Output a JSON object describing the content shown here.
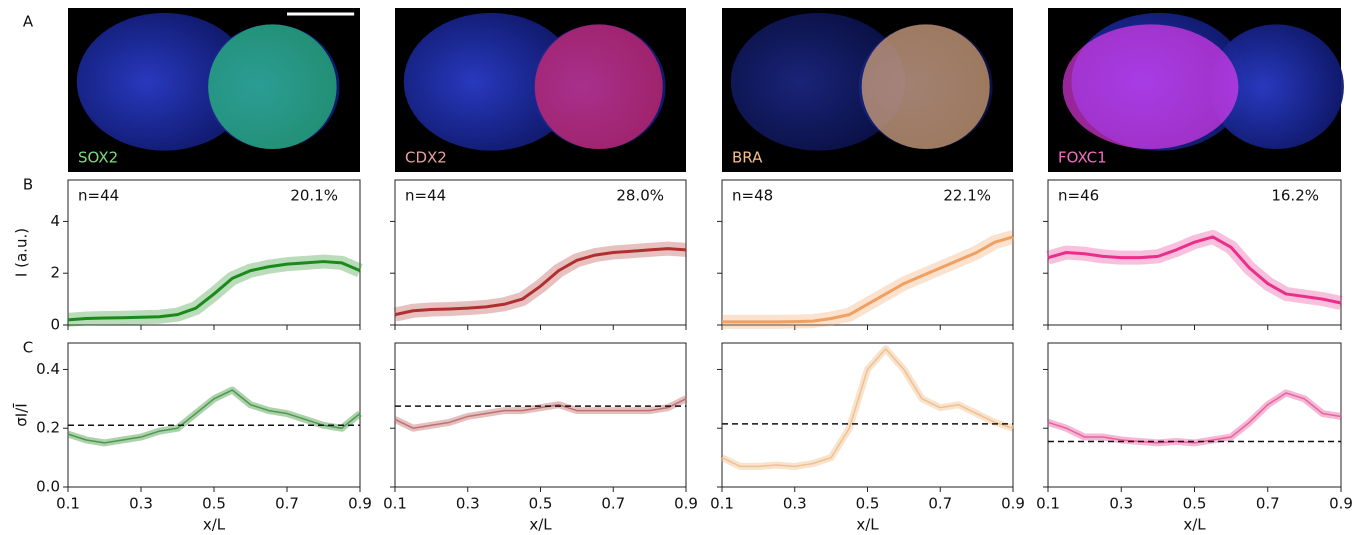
{
  "panel_labels": [
    "A",
    "B",
    "C"
  ],
  "images": [
    {
      "label": "SOX2",
      "label_color": "#7ddc7d"
    },
    {
      "label": "CDX2",
      "label_color": "#e8a0a0"
    },
    {
      "label": "BRA",
      "label_color": "#f5c08a"
    },
    {
      "label": "FOXC1",
      "label_color": "#f070c0"
    }
  ],
  "chart_data": [
    {
      "type": "line",
      "ylabel": "I (a.u.)",
      "annotations": [
        "n=44",
        "20.1%"
      ],
      "color": "#1a8a1a",
      "x": [
        0.1,
        0.15,
        0.2,
        0.25,
        0.3,
        0.35,
        0.4,
        0.45,
        0.5,
        0.55,
        0.6,
        0.65,
        0.7,
        0.75,
        0.8,
        0.85,
        0.9
      ],
      "values": [
        0.2,
        0.25,
        0.27,
        0.28,
        0.3,
        0.32,
        0.4,
        0.65,
        1.2,
        1.8,
        2.1,
        2.25,
        2.35,
        2.4,
        2.45,
        2.4,
        2.1
      ],
      "xlim": [
        0.1,
        0.9
      ],
      "xticks": [
        0.1,
        0.3,
        0.5,
        0.7,
        0.9
      ],
      "xtick_labels": false,
      "ylim": [
        0,
        5.6
      ],
      "yticks": [
        0,
        2,
        4
      ],
      "ytick_labels": true
    },
    {
      "type": "line",
      "annotations": [
        "n=44",
        "28.0%"
      ],
      "color": "#b03030",
      "x": [
        0.1,
        0.15,
        0.2,
        0.25,
        0.3,
        0.35,
        0.4,
        0.45,
        0.5,
        0.55,
        0.6,
        0.65,
        0.7,
        0.75,
        0.8,
        0.85,
        0.9
      ],
      "values": [
        0.4,
        0.55,
        0.6,
        0.62,
        0.65,
        0.7,
        0.8,
        1.0,
        1.5,
        2.1,
        2.5,
        2.7,
        2.8,
        2.85,
        2.9,
        2.95,
        2.9
      ],
      "xlim": [
        0.1,
        0.9
      ],
      "xticks": [
        0.1,
        0.3,
        0.5,
        0.7,
        0.9
      ],
      "xtick_labels": false,
      "ylim": [
        0,
        5.6
      ],
      "yticks": [
        0,
        2,
        4
      ],
      "ytick_labels": false
    },
    {
      "type": "line",
      "annotations": [
        "n=48",
        "22.1%"
      ],
      "color": "#f0a060",
      "x": [
        0.1,
        0.15,
        0.2,
        0.25,
        0.3,
        0.35,
        0.4,
        0.45,
        0.5,
        0.55,
        0.6,
        0.65,
        0.7,
        0.75,
        0.8,
        0.85,
        0.9
      ],
      "values": [
        0.12,
        0.12,
        0.12,
        0.12,
        0.13,
        0.15,
        0.25,
        0.4,
        0.8,
        1.2,
        1.6,
        1.9,
        2.2,
        2.5,
        2.8,
        3.2,
        3.4
      ],
      "xlim": [
        0.1,
        0.9
      ],
      "xticks": [
        0.1,
        0.3,
        0.5,
        0.7,
        0.9
      ],
      "xtick_labels": false,
      "ylim": [
        0,
        5.6
      ],
      "yticks": [
        0,
        2,
        4
      ],
      "ytick_labels": false
    },
    {
      "type": "line",
      "annotations": [
        "n=46",
        "16.2%"
      ],
      "color": "#e8308a",
      "x": [
        0.1,
        0.15,
        0.2,
        0.25,
        0.3,
        0.35,
        0.4,
        0.45,
        0.5,
        0.55,
        0.6,
        0.65,
        0.7,
        0.75,
        0.8,
        0.85,
        0.9
      ],
      "values": [
        2.6,
        2.8,
        2.75,
        2.65,
        2.6,
        2.6,
        2.65,
        2.9,
        3.2,
        3.4,
        3.0,
        2.2,
        1.6,
        1.2,
        1.1,
        1.0,
        0.85
      ],
      "xlim": [
        0.1,
        0.9
      ],
      "xticks": [
        0.1,
        0.3,
        0.5,
        0.7,
        0.9
      ],
      "xtick_labels": false,
      "ylim": [
        0,
        5.6
      ],
      "yticks": [
        0,
        2,
        4
      ],
      "ytick_labels": false
    },
    {
      "type": "line",
      "ylabel": "σI/Ī",
      "xlabel": "x/L",
      "color": "#4a9a4a",
      "reference_line": 0.21,
      "x": [
        0.1,
        0.15,
        0.2,
        0.25,
        0.3,
        0.35,
        0.4,
        0.45,
        0.5,
        0.55,
        0.6,
        0.65,
        0.7,
        0.75,
        0.8,
        0.85,
        0.9
      ],
      "values": [
        0.18,
        0.16,
        0.15,
        0.16,
        0.17,
        0.19,
        0.2,
        0.25,
        0.3,
        0.33,
        0.28,
        0.26,
        0.25,
        0.23,
        0.21,
        0.2,
        0.25
      ],
      "xlim": [
        0.1,
        0.9
      ],
      "xticks": [
        0.1,
        0.3,
        0.5,
        0.7,
        0.9
      ],
      "xtick_labels": true,
      "ylim": [
        0,
        0.49
      ],
      "yticks": [
        {
          "value": 0,
          "label": "0.0"
        },
        0.2,
        0.4
      ],
      "ytick_labels": true
    },
    {
      "type": "line",
      "xlabel": "x/L",
      "color": "#c07070",
      "reference_line": 0.275,
      "x": [
        0.1,
        0.15,
        0.2,
        0.25,
        0.3,
        0.35,
        0.4,
        0.45,
        0.5,
        0.55,
        0.6,
        0.65,
        0.7,
        0.75,
        0.8,
        0.85,
        0.9
      ],
      "values": [
        0.23,
        0.2,
        0.21,
        0.22,
        0.24,
        0.25,
        0.26,
        0.26,
        0.27,
        0.28,
        0.26,
        0.26,
        0.26,
        0.26,
        0.26,
        0.27,
        0.3
      ],
      "xlim": [
        0.1,
        0.9
      ],
      "xticks": [
        0.1,
        0.3,
        0.5,
        0.7,
        0.9
      ],
      "xtick_labels": true,
      "ylim": [
        0,
        0.49
      ],
      "yticks": [
        {
          "value": 0,
          "label": "0.0"
        },
        0.2,
        0.4
      ],
      "ytick_labels": false
    },
    {
      "type": "line",
      "xlabel": "x/L",
      "color": "#f0c090",
      "reference_line": 0.215,
      "x": [
        0.1,
        0.15,
        0.2,
        0.25,
        0.3,
        0.35,
        0.4,
        0.45,
        0.5,
        0.55,
        0.6,
        0.65,
        0.7,
        0.75,
        0.8,
        0.85,
        0.9
      ],
      "values": [
        0.1,
        0.07,
        0.07,
        0.075,
        0.07,
        0.08,
        0.1,
        0.2,
        0.4,
        0.47,
        0.4,
        0.3,
        0.27,
        0.28,
        0.25,
        0.22,
        0.2
      ],
      "xlim": [
        0.1,
        0.9
      ],
      "xticks": [
        0.1,
        0.3,
        0.5,
        0.7,
        0.9
      ],
      "xtick_labels": true,
      "ylim": [
        0,
        0.49
      ],
      "yticks": [
        {
          "value": 0,
          "label": "0.0"
        },
        0.2,
        0.4
      ],
      "ytick_labels": false
    },
    {
      "type": "line",
      "xlabel": "x/L",
      "color": "#e860a0",
      "reference_line": 0.155,
      "x": [
        0.1,
        0.15,
        0.2,
        0.25,
        0.3,
        0.35,
        0.4,
        0.45,
        0.5,
        0.55,
        0.6,
        0.65,
        0.7,
        0.75,
        0.8,
        0.85,
        0.9
      ],
      "values": [
        0.22,
        0.2,
        0.17,
        0.17,
        0.16,
        0.155,
        0.15,
        0.155,
        0.15,
        0.16,
        0.17,
        0.22,
        0.28,
        0.32,
        0.3,
        0.25,
        0.24
      ],
      "xlim": [
        0.1,
        0.9
      ],
      "xticks": [
        0.1,
        0.3,
        0.5,
        0.7,
        0.9
      ],
      "xtick_labels": true,
      "ylim": [
        0,
        0.49
      ],
      "yticks": [
        {
          "value": 0,
          "label": "0.0"
        },
        0.2,
        0.4
      ],
      "ytick_labels": false
    }
  ]
}
